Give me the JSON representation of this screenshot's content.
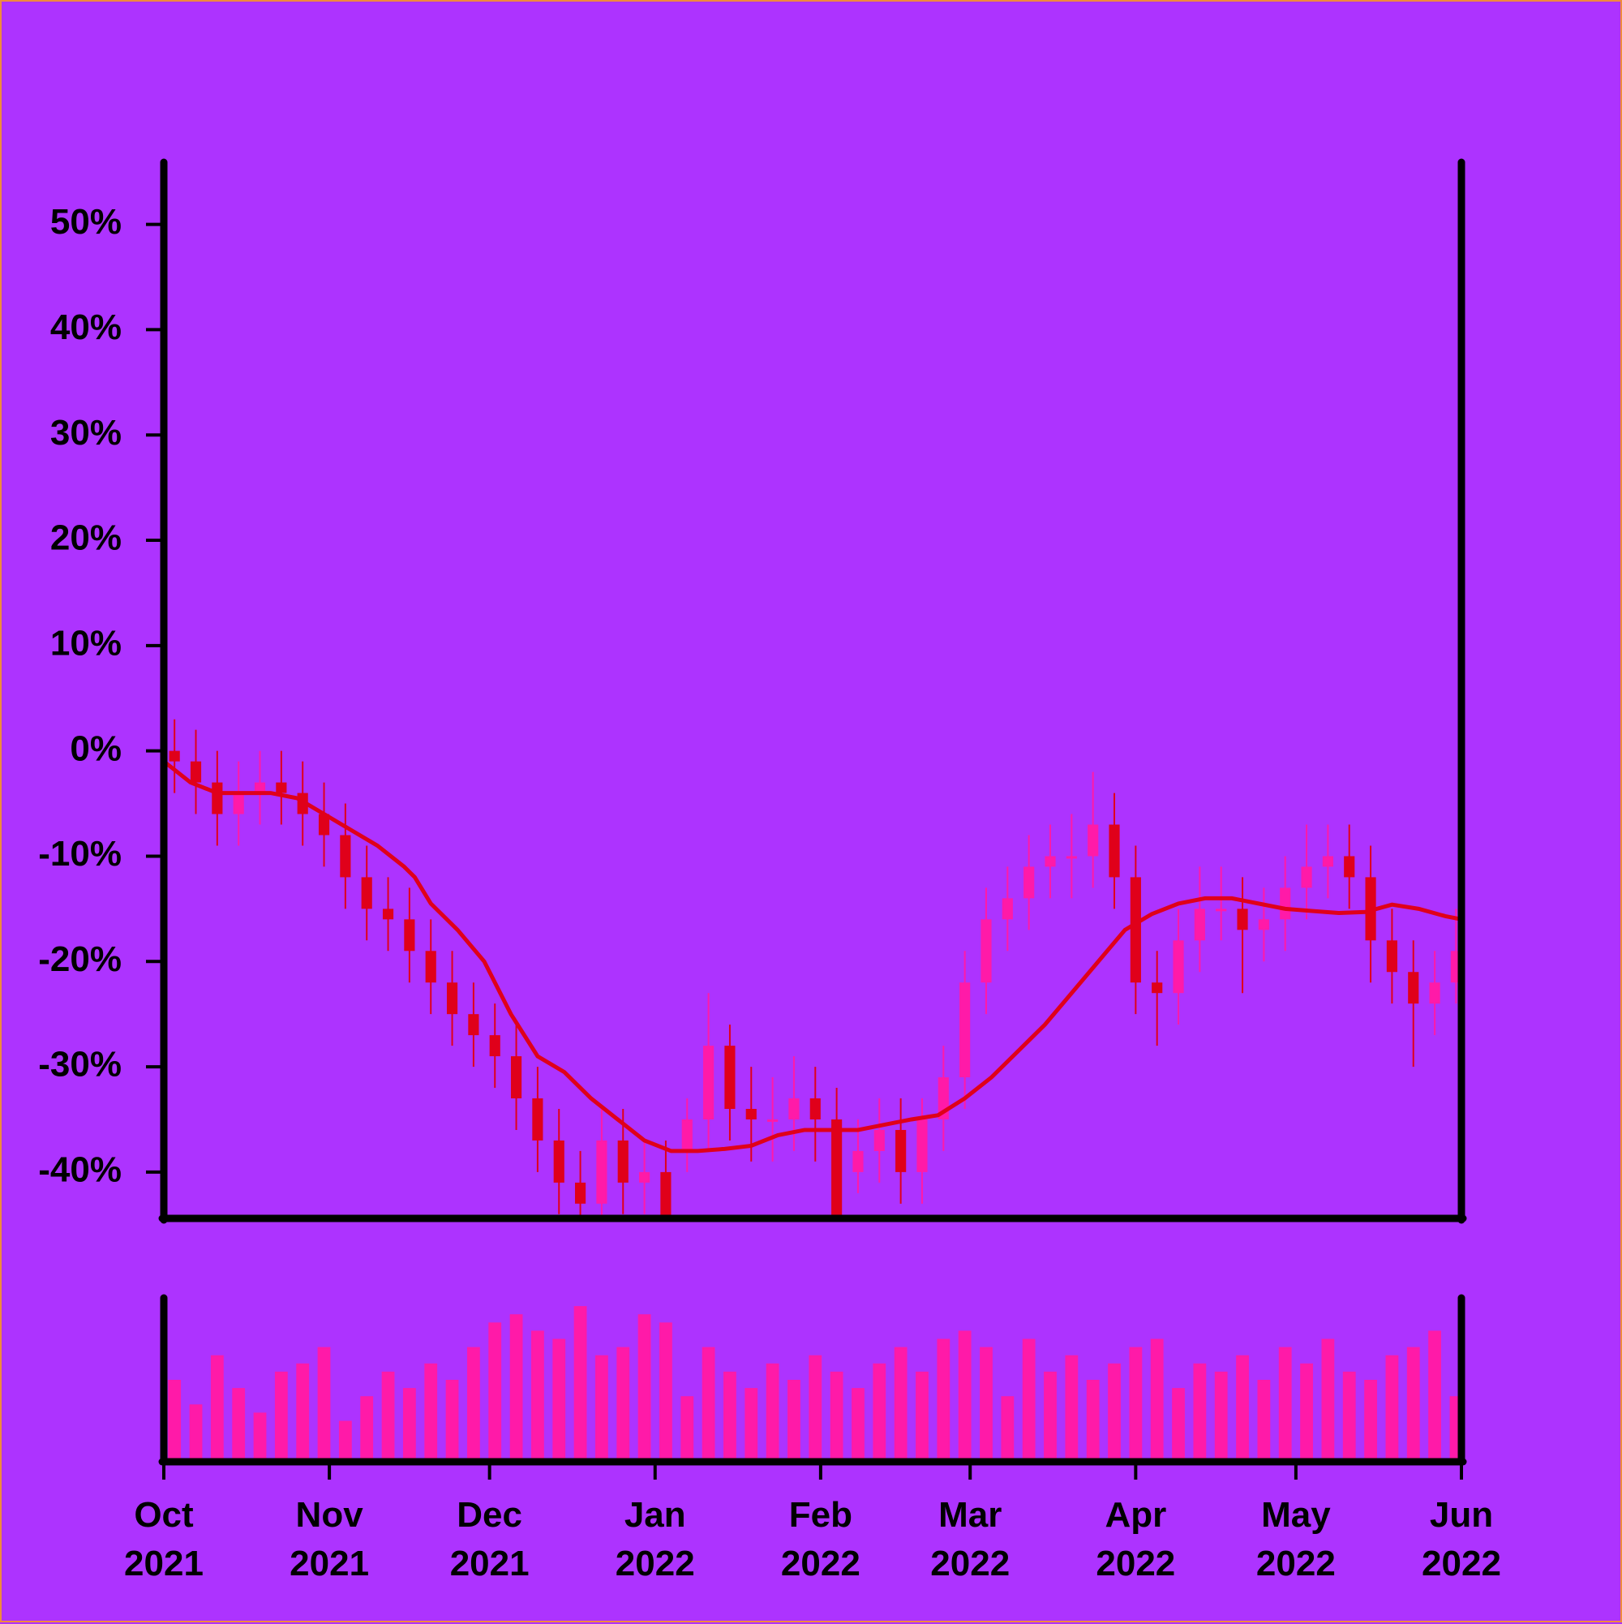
{
  "chart_data": {
    "type": "candlestick",
    "x": [
      0,
      4,
      8,
      12,
      16,
      20,
      24,
      28,
      32,
      36,
      40,
      44,
      48,
      52,
      56,
      60,
      64,
      68,
      72,
      76,
      80,
      84,
      88,
      92,
      96,
      100,
      104,
      108,
      112,
      116,
      120,
      124,
      128,
      132,
      136,
      140,
      144,
      148,
      152,
      156,
      160,
      164,
      168,
      172,
      176,
      180,
      184,
      188,
      192,
      196,
      200,
      204,
      208,
      212,
      216,
      220,
      224,
      228,
      232,
      236,
      240
    ],
    "open": [
      0,
      -1,
      -3,
      -6,
      -4,
      -3,
      -4,
      -6,
      -8,
      -12,
      -15,
      -16,
      -19,
      -22,
      -25,
      -27,
      -29,
      -33,
      -37,
      -41,
      -43,
      -37,
      -41,
      -40,
      -38,
      -35,
      -28,
      -34,
      -35,
      -35,
      -33,
      -35,
      -40,
      -38,
      -36,
      -40,
      -35,
      -31,
      -22,
      -16,
      -14,
      -11,
      -10,
      -10,
      -7,
      -12,
      -22,
      -23,
      -18,
      -15,
      -15,
      -17,
      -16,
      -13,
      -11,
      -10,
      -12,
      -18,
      -21,
      -24,
      -22
    ],
    "high": [
      3,
      2,
      0,
      -1,
      0,
      0,
      -1,
      -3,
      -5,
      -9,
      -12,
      -13,
      -16,
      -19,
      -22,
      -24,
      -26,
      -30,
      -34,
      -38,
      -34,
      -34,
      -37,
      -37,
      -33,
      -23,
      -26,
      -30,
      -31,
      -29,
      -30,
      -32,
      -35,
      -33,
      -33,
      -33,
      -28,
      -19,
      -13,
      -11,
      -8,
      -7,
      -6,
      -2,
      -4,
      -9,
      -19,
      -15,
      -11,
      -11,
      -12,
      -13,
      -10,
      -7,
      -7,
      -7,
      -9,
      -15,
      -18,
      -19,
      -15
    ],
    "low": [
      -4,
      -6,
      -9,
      -9,
      -7,
      -7,
      -9,
      -11,
      -15,
      -18,
      -19,
      -22,
      -25,
      -28,
      -30,
      -32,
      -36,
      -40,
      -44,
      -46,
      -46,
      -44,
      -44,
      -48,
      -40,
      -38,
      -37,
      -39,
      -39,
      -38,
      -39,
      -49,
      -42,
      -41,
      -43,
      -43,
      -38,
      -34,
      -25,
      -19,
      -17,
      -14,
      -14,
      -13,
      -15,
      -25,
      -28,
      -26,
      -21,
      -18,
      -23,
      -20,
      -19,
      -16,
      -14,
      -15,
      -22,
      -24,
      -30,
      -27,
      -24
    ],
    "close": [
      -1,
      -3,
      -6,
      -4,
      -3,
      -4,
      -6,
      -8,
      -12,
      -15,
      -16,
      -19,
      -22,
      -25,
      -27,
      -29,
      -33,
      -37,
      -41,
      -43,
      -37,
      -41,
      -40,
      -45,
      -35,
      -28,
      -34,
      -35,
      -35,
      -33,
      -35,
      -46,
      -38,
      -36,
      -40,
      -35,
      -31,
      -22,
      -16,
      -14,
      -11,
      -10,
      -10,
      -7,
      -12,
      -22,
      -23,
      -18,
      -15,
      -15,
      -17,
      -16,
      -13,
      -11,
      -10,
      -12,
      -18,
      -21,
      -24,
      -22,
      -19
    ],
    "up_color": "#ff1aa8",
    "down_color": "#e0001a",
    "ma": {
      "color": "#e0001a",
      "x": [
        0,
        5,
        10,
        15,
        20,
        25,
        30,
        35,
        40,
        45,
        47,
        50,
        55,
        60,
        65,
        70,
        75,
        80,
        85,
        90,
        95,
        100,
        105,
        110,
        115,
        120,
        125,
        130,
        135,
        140,
        145,
        150,
        155,
        160,
        165,
        170,
        175,
        180,
        185,
        190,
        195,
        200,
        205,
        210,
        215,
        220,
        225,
        230,
        235,
        240,
        243
      ],
      "values": [
        -1,
        -3,
        -4,
        -4,
        -4,
        -4.5,
        -6,
        -7.5,
        -9,
        -11,
        -12,
        -14.5,
        -17,
        -20,
        -25,
        -29,
        -30.5,
        -33,
        -35,
        -37,
        -38,
        -38,
        -37.8,
        -37.5,
        -36.5,
        -36,
        -36,
        -36,
        -35.5,
        -35,
        -34.6,
        -33,
        -31,
        -28.5,
        -26,
        -23,
        -20,
        -17,
        -15.5,
        -14.5,
        -14,
        -14,
        -14.5,
        -15,
        -15.2,
        -15.4,
        -15.3,
        -14.6,
        -15,
        -15.7,
        -16
      ]
    },
    "volume": {
      "color": "#ff1aa8",
      "ylim": [
        0,
        100
      ],
      "values": [
        50,
        35,
        65,
        45,
        30,
        55,
        60,
        70,
        25,
        40,
        55,
        45,
        60,
        50,
        70,
        85,
        90,
        80,
        75,
        95,
        65,
        70,
        90,
        85,
        40,
        70,
        55,
        45,
        60,
        50,
        65,
        55,
        45,
        60,
        70,
        55,
        75,
        80,
        70,
        40,
        75,
        55,
        65,
        50,
        60,
        70,
        75,
        45,
        60,
        55,
        65,
        50,
        70,
        60,
        75,
        55,
        50,
        65,
        70,
        80,
        40
      ]
    },
    "xlim": [
      0,
      243
    ],
    "ylim": [
      -44.4,
      55.9
    ],
    "yticks": [
      {
        "value": -40,
        "label": "-40%"
      },
      {
        "value": -30,
        "label": "-30%"
      },
      {
        "value": -20,
        "label": "-20%"
      },
      {
        "value": -10,
        "label": "-10%"
      },
      {
        "value": 0,
        "label": "0%"
      },
      {
        "value": 10,
        "label": "10%"
      },
      {
        "value": 20,
        "label": "20%"
      },
      {
        "value": 30,
        "label": "30%"
      },
      {
        "value": 40,
        "label": "40%"
      },
      {
        "value": 50,
        "label": "50%"
      }
    ],
    "xticks": [
      {
        "value": 0,
        "label": "Oct\n2021"
      },
      {
        "value": 31,
        "label": "Nov\n2021"
      },
      {
        "value": 61,
        "label": "Dec\n2021"
      },
      {
        "value": 92,
        "label": "Jan\n2022"
      },
      {
        "value": 123,
        "label": "Feb\n2022"
      },
      {
        "value": 151,
        "label": "Mar\n2022"
      },
      {
        "value": 182,
        "label": "Apr\n2022"
      },
      {
        "value": 212,
        "label": "May\n2022"
      },
      {
        "value": 243,
        "label": "Jun\n2022"
      }
    ]
  }
}
